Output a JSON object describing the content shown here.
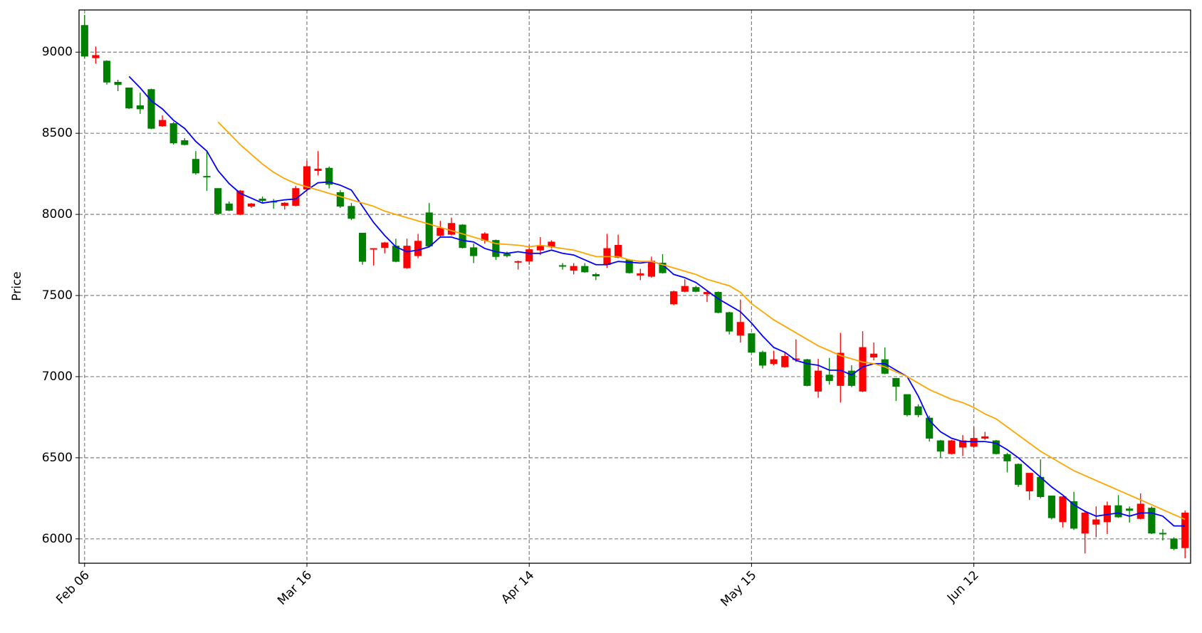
{
  "chart_data": {
    "type": "candlestick",
    "ylabel": "Price",
    "x": [
      0,
      1,
      2,
      3,
      4,
      5,
      6,
      7,
      8,
      9,
      10,
      11,
      12,
      13,
      14,
      15,
      16,
      17,
      18,
      19,
      20,
      21,
      22,
      23,
      24,
      25,
      26,
      27,
      28,
      29,
      30,
      31,
      32,
      33,
      34,
      35,
      36,
      37,
      38,
      39,
      40,
      41,
      42,
      43,
      44,
      45,
      46,
      47,
      48,
      49,
      50,
      51,
      52,
      53,
      54,
      55,
      56,
      57,
      58,
      59,
      60,
      61,
      62,
      63,
      64,
      65,
      66,
      67,
      68,
      69,
      70,
      71,
      72,
      73,
      74,
      75,
      76,
      77,
      78,
      79,
      80,
      81,
      82,
      83,
      84,
      85,
      86,
      87,
      88,
      89,
      90,
      91,
      92,
      93,
      94,
      95,
      96,
      97,
      98,
      99
    ],
    "open": [
      9165,
      8965,
      8945,
      8815,
      8780,
      8670,
      8770,
      8545,
      8560,
      8455,
      8340,
      8235,
      8160,
      8065,
      8000,
      8050,
      8095,
      8080,
      8055,
      8055,
      8155,
      8270,
      8285,
      8135,
      8050,
      7885,
      7785,
      7795,
      7805,
      7670,
      7745,
      8010,
      7870,
      7877,
      7935,
      7795,
      7840,
      7840,
      7755,
      7705,
      7712,
      7780,
      7800,
      7685,
      7655,
      7680,
      7630,
      7690,
      7735,
      7720,
      7625,
      7618,
      7700,
      7448,
      7525,
      7550,
      7510,
      7520,
      7395,
      7255,
      7265,
      7150,
      7080,
      7060,
      7105,
      7105,
      6910,
      7010,
      6945,
      7035,
      6910,
      7120,
      7105,
      6990,
      6890,
      6815,
      6745,
      6605,
      6525,
      6565,
      6570,
      6620,
      6605,
      6520,
      6460,
      6295,
      6380,
      6265,
      6105,
      6230,
      6035,
      6090,
      6105,
      6205,
      6185,
      6125,
      6190,
      6035,
      6000,
      5945
    ],
    "high": [
      9230,
      9035,
      8950,
      8830,
      8780,
      8750,
      8775,
      8610,
      8570,
      8470,
      8390,
      8395,
      8160,
      8080,
      8150,
      8070,
      8110,
      8095,
      8075,
      8175,
      8330,
      8390,
      8295,
      8150,
      8070,
      7885,
      7790,
      7830,
      7850,
      7850,
      7880,
      8070,
      7960,
      7980,
      7940,
      7820,
      7890,
      7845,
      7770,
      7715,
      7810,
      7860,
      7840,
      7700,
      7700,
      7700,
      7640,
      7880,
      7875,
      7725,
      7665,
      7740,
      7755,
      7530,
      7600,
      7560,
      7530,
      7525,
      7400,
      7475,
      7265,
      7160,
      7160,
      7150,
      7230,
      7110,
      7110,
      7115,
      7270,
      7070,
      7280,
      7210,
      7180,
      6990,
      6890,
      6830,
      6760,
      6610,
      6610,
      6640,
      6690,
      6660,
      6610,
      6530,
      6465,
      6405,
      6490,
      6265,
      6260,
      6290,
      6170,
      6200,
      6230,
      6270,
      6200,
      6280,
      6200,
      6060,
      6010,
      6175
    ],
    "low": [
      8965,
      8930,
      8800,
      8760,
      8650,
      8620,
      8525,
      8540,
      8430,
      8425,
      8245,
      8145,
      8000,
      8020,
      7995,
      8040,
      8075,
      8035,
      8030,
      8050,
      8140,
      8240,
      8160,
      8040,
      7965,
      7690,
      7685,
      7760,
      7705,
      7665,
      7730,
      7800,
      7860,
      7870,
      7790,
      7700,
      7820,
      7720,
      7735,
      7660,
      7690,
      7750,
      7790,
      7660,
      7630,
      7640,
      7595,
      7670,
      7730,
      7635,
      7595,
      7610,
      7635,
      7440,
      7520,
      7520,
      7460,
      7390,
      7260,
      7210,
      7145,
      7050,
      7070,
      7055,
      7090,
      6940,
      6870,
      6950,
      6840,
      6935,
      6905,
      7100,
      7015,
      6850,
      6755,
      6750,
      6600,
      6500,
      6520,
      6510,
      6560,
      6610,
      6520,
      6410,
      6320,
      6240,
      6250,
      6120,
      6070,
      6055,
      5910,
      6010,
      6030,
      6130,
      6100,
      6120,
      6030,
      5990,
      5930,
      5880
    ],
    "close": [
      8975,
      8980,
      8815,
      8800,
      8655,
      8650,
      8530,
      8580,
      8440,
      8430,
      8255,
      8230,
      8005,
      8025,
      8145,
      8065,
      8085,
      8075,
      8070,
      8160,
      8295,
      8280,
      8185,
      8050,
      7975,
      7710,
      7790,
      7825,
      7710,
      7805,
      7835,
      7805,
      7915,
      7945,
      7795,
      7745,
      7880,
      7740,
      7745,
      7710,
      7783,
      7808,
      7830,
      7680,
      7680,
      7645,
      7620,
      7790,
      7810,
      7640,
      7635,
      7712,
      7640,
      7524,
      7557,
      7525,
      7520,
      7395,
      7280,
      7335,
      7150,
      7070,
      7105,
      7125,
      7110,
      6945,
      7035,
      6975,
      7145,
      6945,
      7180,
      7140,
      7020,
      6940,
      6765,
      6765,
      6620,
      6540,
      6605,
      6605,
      6620,
      6630,
      6525,
      6480,
      6335,
      6405,
      6260,
      6130,
      6260,
      6065,
      6160,
      6118,
      6205,
      6135,
      6175,
      6215,
      6035,
      6030,
      5940,
      6160
    ],
    "up_color": "red",
    "down_color": "green",
    "series": [
      {
        "color": "blue",
        "values": [
          null,
          null,
          null,
          null,
          8850,
          8780,
          8700,
          8650,
          8580,
          8530,
          8450,
          8390,
          8270,
          8190,
          8130,
          8100,
          8070,
          8080,
          8090,
          8095,
          8150,
          8195,
          8200,
          8180,
          8150,
          8050,
          7950,
          7870,
          7800,
          7770,
          7780,
          7800,
          7860,
          7860,
          7840,
          7830,
          7790,
          7770,
          7760,
          7770,
          7760,
          7760,
          7780,
          7760,
          7750,
          7720,
          7690,
          7690,
          7710,
          7705,
          7700,
          7710,
          7690,
          7630,
          7610,
          7580,
          7530,
          7480,
          7440,
          7400,
          7330,
          7250,
          7180,
          7150,
          7100,
          7080,
          7070,
          7040,
          7040,
          7010,
          7060,
          7080,
          7080,
          7040,
          7000,
          6880,
          6730,
          6660,
          6620,
          6600,
          6600,
          6600,
          6590,
          6550,
          6500,
          6440,
          6380,
          6320,
          6270,
          6210,
          6170,
          6140,
          6150,
          6160,
          6140,
          6160,
          6160,
          6140,
          6080,
          6080
        ]
      },
      {
        "color": "orange",
        "values": [
          null,
          null,
          null,
          null,
          null,
          null,
          null,
          null,
          null,
          null,
          null,
          null,
          8570,
          8500,
          8430,
          8370,
          8310,
          8260,
          8220,
          8190,
          8170,
          8150,
          8130,
          8110,
          8090,
          8070,
          8050,
          8020,
          8000,
          7980,
          7960,
          7940,
          7920,
          7900,
          7880,
          7860,
          7840,
          7820,
          7815,
          7810,
          7800,
          7810,
          7800,
          7790,
          7780,
          7760,
          7740,
          7740,
          7740,
          7720,
          7710,
          7710,
          7690,
          7670,
          7650,
          7630,
          7600,
          7580,
          7560,
          7520,
          7450,
          7400,
          7350,
          7310,
          7270,
          7230,
          7190,
          7160,
          7130,
          7110,
          7090,
          7080,
          7060,
          7030,
          7000,
          6960,
          6920,
          6890,
          6860,
          6840,
          6810,
          6770,
          6740,
          6690,
          6640,
          6590,
          6540,
          6500,
          6460,
          6420,
          6390,
          6360,
          6330,
          6300,
          6270,
          6240,
          6210,
          6180,
          6150,
          6120
        ]
      }
    ],
    "xlim": [
      -0.5,
      99.5
    ],
    "ylim": [
      5850,
      9260
    ],
    "xticks": [
      {
        "value": 0,
        "label": "Feb 06"
      },
      {
        "value": 20,
        "label": "Mar 16"
      },
      {
        "value": 40,
        "label": "Apr 14"
      },
      {
        "value": 60,
        "label": "May 15"
      },
      {
        "value": 80,
        "label": "Jun 12"
      }
    ],
    "yticks": [
      6000,
      6500,
      7000,
      7500,
      8000,
      8500,
      9000
    ],
    "grid": true
  }
}
